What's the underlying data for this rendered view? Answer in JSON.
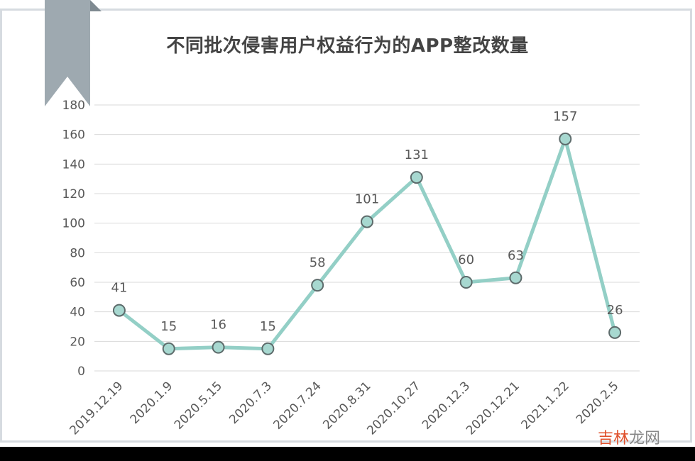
{
  "chart_data": {
    "type": "line",
    "title": "不同批次侵害用户权益行为的APP整改数量",
    "categories": [
      "2019.12.19",
      "2020.1.9",
      "2020.5.15",
      "2020.7.3",
      "2020.7.24",
      "2020.8.31",
      "2020.10.27",
      "2020.12.3",
      "2020.12.21",
      "2021.1.22",
      "2020.2.5"
    ],
    "values": [
      41,
      15,
      16,
      15,
      58,
      101,
      131,
      60,
      63,
      157,
      26
    ],
    "ylim": [
      0,
      180
    ],
    "yticks": [
      0,
      20,
      40,
      60,
      80,
      100,
      120,
      140,
      160,
      180
    ],
    "grid": true,
    "data_labels": true,
    "line_color": "#93cfc6",
    "marker_fill": "#a7d8d0",
    "marker_stroke": "#5d6b6b"
  },
  "watermark": {
    "part1": "吉林",
    "part2": "龙网"
  },
  "colors": {
    "frame": "#d6dbe0",
    "bookmark": "#9ea9b0",
    "grid": "#d9d9d9",
    "text": "#595959"
  }
}
